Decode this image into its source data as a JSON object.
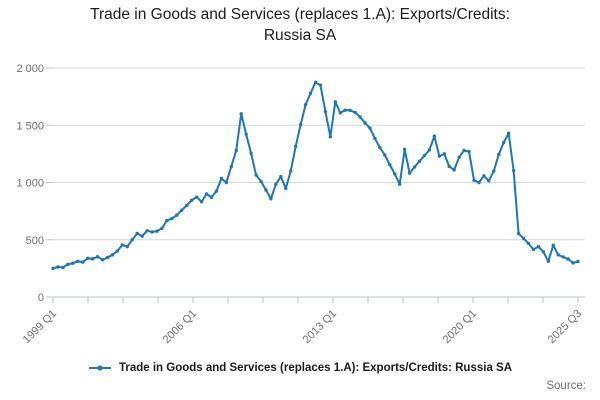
{
  "title": {
    "line1": "Trade in Goods and Services (replaces 1.A): Exports/Credits:",
    "line2": "Russia SA"
  },
  "legend": {
    "label": "Trade in Goods and Services (replaces 1.A): Exports/Credits: Russia SA"
  },
  "source_label": "Source:",
  "colors": {
    "line": "#1f77b4",
    "grid": "#d9d9d9",
    "axis": "#b7c3da",
    "tick_text": "#6e6e6e",
    "title_text": "#1c1c1c"
  },
  "chart_data": {
    "type": "line",
    "title": "Trade in Goods and Services (replaces 1.A): Exports/Credits: Russia SA",
    "xlabel": "",
    "ylabel": "",
    "ylim": [
      0,
      2000
    ],
    "grid": true,
    "legend_position": "bottom",
    "x_start": "1999 Q1",
    "x_end": "2025 Q3",
    "frequency": "quarterly",
    "x_tick_labels": [
      "1999 Q1",
      "2006 Q1",
      "2013 Q1",
      "2020 Q1",
      "2025 Q3"
    ],
    "x_tick_label_slots": [
      0,
      4,
      8,
      12,
      15
    ],
    "x_minor_tick_count": 16,
    "y_ticks": [
      0,
      500,
      1000,
      1500,
      2000
    ],
    "y_tick_labels": [
      "0",
      "500",
      "1 000",
      "1 500",
      "2 000"
    ],
    "series": [
      {
        "name": "Trade in Goods and Services (replaces 1.A): Exports/Credits: Russia SA",
        "values": [
          250,
          262,
          258,
          285,
          295,
          312,
          305,
          338,
          333,
          352,
          325,
          345,
          368,
          402,
          455,
          440,
          500,
          555,
          532,
          578,
          568,
          575,
          600,
          668,
          685,
          715,
          758,
          800,
          845,
          872,
          832,
          900,
          870,
          925,
          1035,
          1000,
          1140,
          1280,
          1600,
          1420,
          1255,
          1065,
          1010,
          935,
          858,
          985,
          1052,
          948,
          1100,
          1315,
          1505,
          1680,
          1780,
          1875,
          1850,
          1620,
          1400,
          1705,
          1608,
          1632,
          1630,
          1612,
          1572,
          1520,
          1475,
          1385,
          1305,
          1240,
          1155,
          1075,
          985,
          1290,
          1082,
          1135,
          1185,
          1235,
          1285,
          1405,
          1230,
          1250,
          1140,
          1110,
          1220,
          1280,
          1270,
          1020,
          1000,
          1058,
          1015,
          1100,
          1245,
          1350,
          1430,
          1105,
          555,
          512,
          468,
          415,
          440,
          395,
          312,
          452,
          368,
          350,
          332,
          298,
          310
        ]
      }
    ]
  }
}
